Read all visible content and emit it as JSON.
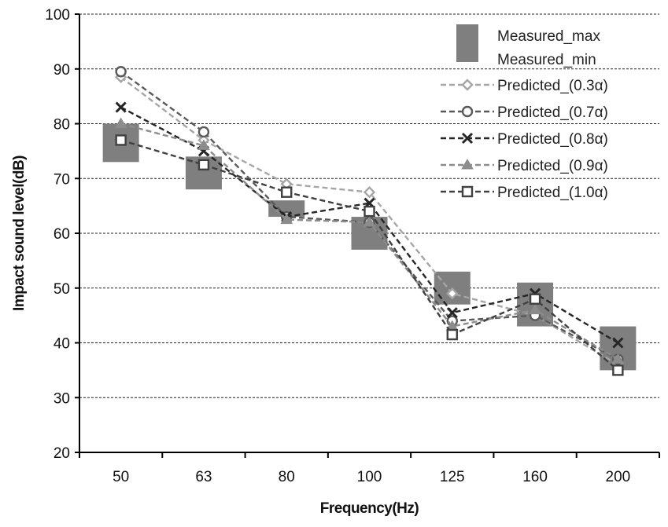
{
  "chart_data": {
    "type": "line",
    "xlabel": "Frequency(Hz)",
    "ylabel": "Impact sound level(dB)",
    "categories": [
      "50",
      "63",
      "80",
      "100",
      "125",
      "160",
      "200"
    ],
    "ylim": [
      20,
      100
    ],
    "yticks": [
      20,
      30,
      40,
      50,
      60,
      70,
      80,
      90,
      100
    ],
    "grid": "horizontal-dashed",
    "legend_position": "top-right",
    "measured": {
      "name_max": "Measured_max",
      "name_min": "Measured_min",
      "max": [
        80,
        74,
        66,
        63,
        53,
        51,
        43
      ],
      "min": [
        73,
        68,
        63,
        57,
        47,
        43,
        35
      ],
      "color": "#7f7f7f"
    },
    "series": [
      {
        "name": "Predicted_(0.3α)",
        "marker": "diamond",
        "color": "#a6a6a6",
        "values": [
          88.5,
          77,
          69,
          67.5,
          49,
          45,
          36
        ]
      },
      {
        "name": "Predicted_(0.7α)",
        "marker": "circle",
        "color": "#595959",
        "values": [
          89.5,
          78.5,
          63,
          62,
          44,
          45,
          37
        ]
      },
      {
        "name": "Predicted_(0.8α)",
        "marker": "x",
        "color": "#262626",
        "values": [
          83,
          75,
          63,
          65.5,
          45.5,
          49,
          40
        ]
      },
      {
        "name": "Predicted_(0.9α)",
        "marker": "triangle",
        "color": "#8c8c8c",
        "values": [
          80,
          76,
          62.5,
          62,
          43,
          46,
          37
        ]
      },
      {
        "name": "Predicted_(1.0α)",
        "marker": "square",
        "color": "#404040",
        "values": [
          77,
          72.5,
          67.5,
          64,
          41.5,
          48,
          35
        ]
      }
    ]
  }
}
